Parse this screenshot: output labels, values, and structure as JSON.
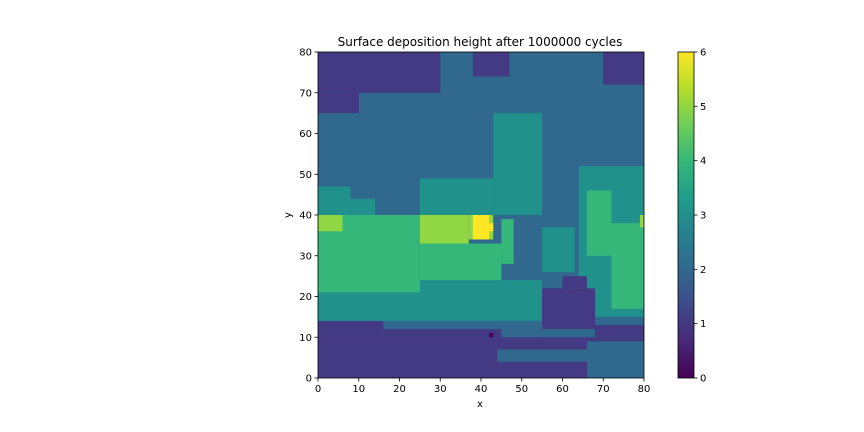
{
  "chart_data": {
    "type": "heatmap",
    "title": "Surface deposition height after 1000000 cycles",
    "xlabel": "x",
    "ylabel": "y",
    "xlim": [
      0,
      80
    ],
    "ylim": [
      0,
      80
    ],
    "xticks": [
      "0",
      "10",
      "20",
      "30",
      "40",
      "50",
      "60",
      "70",
      "80"
    ],
    "yticks": [
      "0",
      "10",
      "20",
      "30",
      "40",
      "50",
      "60",
      "70",
      "80"
    ],
    "colorbar": {
      "colormap": "viridis",
      "range": [
        0,
        6
      ],
      "ticks": [
        "0",
        "1",
        "2",
        "3",
        "4",
        "5",
        "6"
      ]
    },
    "colors": {
      "0": "#440154",
      "1": "#443983",
      "2": "#31688e",
      "3": "#21918c",
      "4": "#35b779",
      "5": "#90d743",
      "6": "#fde725"
    },
    "grid": false,
    "regions": [
      {
        "level": 2,
        "x": [
          0,
          80
        ],
        "y": [
          0,
          80
        ]
      },
      {
        "level": 1,
        "x": [
          0,
          30
        ],
        "y": [
          70,
          80
        ]
      },
      {
        "level": 1,
        "x": [
          0,
          10
        ],
        "y": [
          65,
          70
        ]
      },
      {
        "level": 1,
        "x": [
          38,
          47
        ],
        "y": [
          74,
          80
        ]
      },
      {
        "level": 1,
        "x": [
          70,
          80
        ],
        "y": [
          72,
          80
        ]
      },
      {
        "level": 3,
        "x": [
          43,
          55
        ],
        "y": [
          40,
          65
        ]
      },
      {
        "level": 3,
        "x": [
          25,
          43
        ],
        "y": [
          40,
          49
        ]
      },
      {
        "level": 3,
        "x": [
          0,
          8
        ],
        "y": [
          40,
          47
        ]
      },
      {
        "level": 3,
        "x": [
          8,
          14
        ],
        "y": [
          40,
          44
        ]
      },
      {
        "level": 3,
        "x": [
          64,
          80
        ],
        "y": [
          15,
          52
        ]
      },
      {
        "level": 3,
        "x": [
          55,
          63
        ],
        "y": [
          26,
          37
        ]
      },
      {
        "level": 3,
        "x": [
          0,
          55
        ],
        "y": [
          14,
          24
        ]
      },
      {
        "level": 4,
        "x": [
          0,
          25
        ],
        "y": [
          21,
          40
        ]
      },
      {
        "level": 4,
        "x": [
          25,
          45
        ],
        "y": [
          24,
          33
        ]
      },
      {
        "level": 4,
        "x": [
          45,
          48
        ],
        "y": [
          28,
          39
        ]
      },
      {
        "level": 4,
        "x": [
          72,
          80
        ],
        "y": [
          17,
          38
        ]
      },
      {
        "level": 4,
        "x": [
          66,
          72
        ],
        "y": [
          30,
          46
        ]
      },
      {
        "level": 5,
        "x": [
          0,
          6
        ],
        "y": [
          36,
          40
        ]
      },
      {
        "level": 5,
        "x": [
          25,
          37
        ],
        "y": [
          33,
          40
        ]
      },
      {
        "level": 5,
        "x": [
          37,
          43
        ],
        "y": [
          34,
          40
        ]
      },
      {
        "level": 5,
        "x": [
          79,
          80
        ],
        "y": [
          37,
          40
        ]
      },
      {
        "level": 6,
        "x": [
          38,
          42
        ],
        "y": [
          34,
          40
        ]
      },
      {
        "level": 6,
        "x": [
          42,
          43
        ],
        "y": [
          36,
          38
        ]
      },
      {
        "level": 1,
        "x": [
          0,
          80
        ],
        "y": [
          0,
          10
        ]
      },
      {
        "level": 1,
        "x": [
          0,
          16
        ],
        "y": [
          10,
          14
        ]
      },
      {
        "level": 1,
        "x": [
          16,
          55
        ],
        "y": [
          10,
          12
        ]
      },
      {
        "level": 1,
        "x": [
          55,
          68
        ],
        "y": [
          12,
          22
        ]
      },
      {
        "level": 1,
        "x": [
          60,
          66
        ],
        "y": [
          22,
          25
        ]
      },
      {
        "level": 1,
        "x": [
          68,
          80
        ],
        "y": [
          10,
          13
        ]
      },
      {
        "level": 2,
        "x": [
          44,
          80
        ],
        "y": [
          4,
          7
        ]
      },
      {
        "level": 2,
        "x": [
          66,
          80
        ],
        "y": [
          0,
          9
        ]
      },
      {
        "level": 2,
        "x": [
          45,
          55
        ],
        "y": [
          10,
          14
        ]
      },
      {
        "level": 0,
        "x": [
          42,
          43
        ],
        "y": [
          10,
          11
        ]
      }
    ]
  }
}
